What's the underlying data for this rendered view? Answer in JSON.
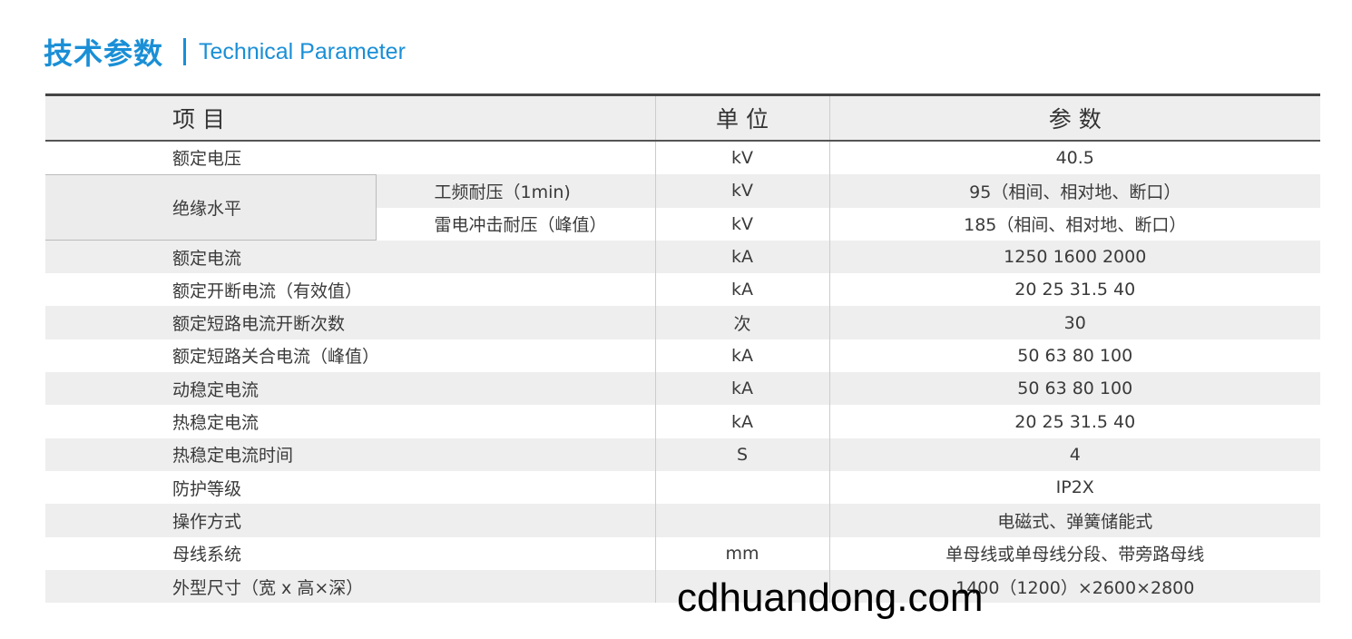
{
  "title": {
    "cn": "技术参数",
    "en": "Technical Parameter"
  },
  "headers": {
    "item": "项 目",
    "unit": "单 位",
    "param": "参 数"
  },
  "rows": [
    {
      "item": "额定电压",
      "unit": "kV",
      "value": "40.5"
    },
    {
      "group": "绝缘水平",
      "sub": "工频耐压（1min)",
      "unit": "kV",
      "value": "95（相间、相对地、断口）"
    },
    {
      "sub": "雷电冲击耐压（峰值）",
      "unit": "kV",
      "value": "185（相间、相对地、断口）"
    },
    {
      "item": "额定电流",
      "unit": "kA",
      "value": "1250 1600 2000"
    },
    {
      "item": "额定开断电流（有效值）",
      "unit": "kA",
      "value": "20 25 31.5 40"
    },
    {
      "item": "额定短路电流开断次数",
      "unit": "次",
      "value": "30"
    },
    {
      "item": "额定短路关合电流（峰值）",
      "unit": "kA",
      "value": "50 63 80 100"
    },
    {
      "item": "动稳定电流",
      "unit": "kA",
      "value": "50 63 80 100"
    },
    {
      "item": "热稳定电流",
      "unit": "kA",
      "value": "20 25 31.5 40"
    },
    {
      "item": "热稳定电流时间",
      "unit": "S",
      "value": "4"
    },
    {
      "item": "防护等级",
      "unit": "",
      "value": "IP2X"
    },
    {
      "item": "操作方式",
      "unit": "",
      "value": "电磁式、弹簧储能式"
    },
    {
      "item": "母线系统",
      "unit": "mm",
      "value": "单母线或单母线分段、带旁路母线"
    },
    {
      "item": "外型尺寸（宽 x 高×深）",
      "unit": "",
      "value": "1400（1200）×2600×2800"
    }
  ],
  "watermark": "cdhuandong.com"
}
